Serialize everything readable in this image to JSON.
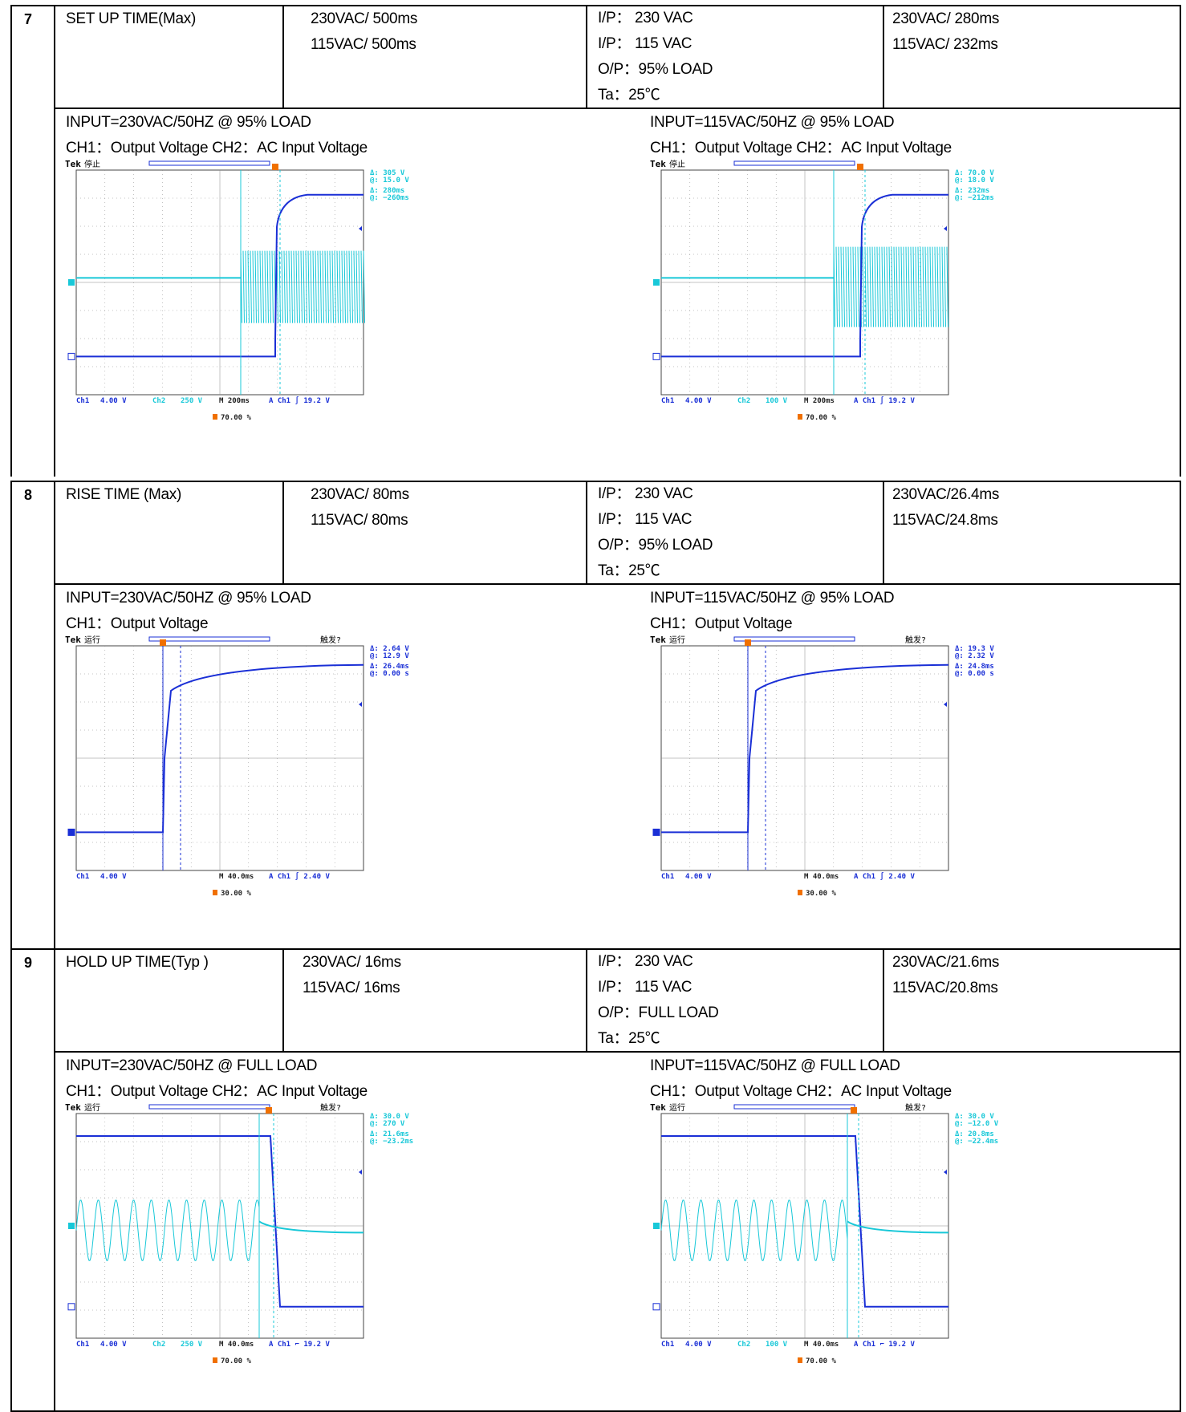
{
  "sections": [
    {
      "num": "7",
      "item": "SET UP TIME(Max)",
      "spec": [
        "230VAC/ 500ms",
        "115VAC/ 500ms"
      ],
      "conditions": [
        "I/P：  230 VAC",
        "I/P：  115 VAC",
        "O/P：95% LOAD",
        "Ta：25℃"
      ],
      "result": [
        "230VAC/ 280ms",
        "115VAC/ 232ms"
      ],
      "scopes": [
        {
          "caption": "INPUT=230VAC/50HZ @ 95% LOAD",
          "channels": "CH1：Output Voltage    CH2：AC Input Voltage",
          "tek_state": "停止",
          "trig_status": "",
          "readouts": [
            "Δ:   305 V",
            "@:   15.0 V",
            "Δ:   280ms",
            "@:  −260ms"
          ],
          "bottom": {
            "ch1": "Ch1",
            "ch1_scale": "4.00 V",
            "ch2": "Ch2",
            "ch2_scale": "250 V",
            "time": "M 200ms",
            "trig": "A  Ch1  ∫   19.2 V"
          },
          "trigger_pos": "70.00 %"
        },
        {
          "caption": "INPUT=115VAC/50HZ @ 95% LOAD",
          "channels": "CH1：Output Voltage    CH2：AC Input Voltage",
          "tek_state": "停止",
          "trig_status": "",
          "readouts": [
            "Δ:   70.0 V",
            "@:   18.0 V",
            "Δ:   232ms",
            "@:  −212ms"
          ],
          "bottom": {
            "ch1": "Ch1",
            "ch1_scale": "4.00 V",
            "ch2": "Ch2",
            "ch2_scale": "100 V",
            "time": "M 200ms",
            "trig": "A  Ch1  ∫   19.2 V"
          },
          "trigger_pos": "70.00 %"
        }
      ]
    },
    {
      "num": "8",
      "item": "RISE TIME (Max)",
      "spec": [
        "230VAC/ 80ms",
        "115VAC/ 80ms"
      ],
      "conditions": [
        "I/P：  230 VAC",
        "I/P：  115 VAC",
        "O/P：95% LOAD",
        "Ta：25℃"
      ],
      "result": [
        "230VAC/26.4ms",
        "115VAC/24.8ms"
      ],
      "scopes": [
        {
          "caption": "INPUT=230VAC/50HZ @ 95% LOAD",
          "channels": "CH1：Output Voltage",
          "tek_state": "运行",
          "trig_status": "触发?",
          "readouts": [
            "Δ:   2.64 V",
            "@:   12.9 V",
            "Δ:   26.4ms",
            "@:   0.00 s"
          ],
          "bottom": {
            "ch1": "Ch1",
            "ch1_scale": "4.00 V",
            "ch2": "",
            "ch2_scale": "",
            "time": "M 40.0ms",
            "trig": "A  Ch1  ∫   2.40 V"
          },
          "trigger_pos": "30.00 %"
        },
        {
          "caption": "INPUT=115VAC/50HZ @ 95% LOAD",
          "channels": "CH1：Output Voltage",
          "tek_state": "运行",
          "trig_status": "触发?",
          "readouts": [
            "Δ:   19.3 V",
            "@:   2.32 V",
            "Δ:   24.8ms",
            "@:   0.00 s"
          ],
          "bottom": {
            "ch1": "Ch1",
            "ch1_scale": "4.00 V",
            "ch2": "",
            "ch2_scale": "",
            "time": "M 40.0ms",
            "trig": "A  Ch1  ∫   2.40 V"
          },
          "trigger_pos": "30.00 %"
        }
      ]
    },
    {
      "num": "9",
      "item": "HOLD UP TIME(Typ )",
      "spec": [
        "230VAC/ 16ms",
        "115VAC/ 16ms"
      ],
      "conditions": [
        "I/P：  230 VAC",
        "I/P：  115 VAC",
        "O/P：FULL LOAD",
        "Ta：25℃"
      ],
      "result": [
        "230VAC/21.6ms",
        "115VAC/20.8ms"
      ],
      "scopes": [
        {
          "caption": "INPUT=230VAC/50HZ @ FULL LOAD",
          "channels": "CH1：Output Voltage    CH2：AC Input Voltage",
          "tek_state": "运行",
          "trig_status": "触发?",
          "readouts": [
            "Δ:   30.0 V",
            "@:   270 V",
            "Δ:   21.6ms",
            "@:  −23.2ms"
          ],
          "bottom": {
            "ch1": "Ch1",
            "ch1_scale": "4.00 V",
            "ch2": "Ch2",
            "ch2_scale": "250 V",
            "time": "M 40.0ms",
            "trig": "A  Ch1  ⌐   19.2 V"
          },
          "trigger_pos": "70.00 %"
        },
        {
          "caption": "INPUT=115VAC/50HZ @ FULL LOAD",
          "channels": "CH1：Output Voltage    CH2：AC Input Voltage",
          "tek_state": "运行",
          "trig_status": "触发?",
          "readouts": [
            "Δ:   30.0 V",
            "@:  −12.0 V",
            "Δ:   20.8ms",
            "@:  −22.4ms"
          ],
          "bottom": {
            "ch1": "Ch1",
            "ch1_scale": "4.00 V",
            "ch2": "Ch2",
            "ch2_scale": "100 V",
            "time": "M 40.0ms",
            "trig": "A  Ch1  ⌐   19.2 V"
          },
          "trigger_pos": "70.00 %"
        }
      ]
    }
  ],
  "colors": {
    "ch1": "#1a2fd6",
    "ch2": "#18c8d8",
    "trigger": "#f07000",
    "grid": "#888888"
  }
}
